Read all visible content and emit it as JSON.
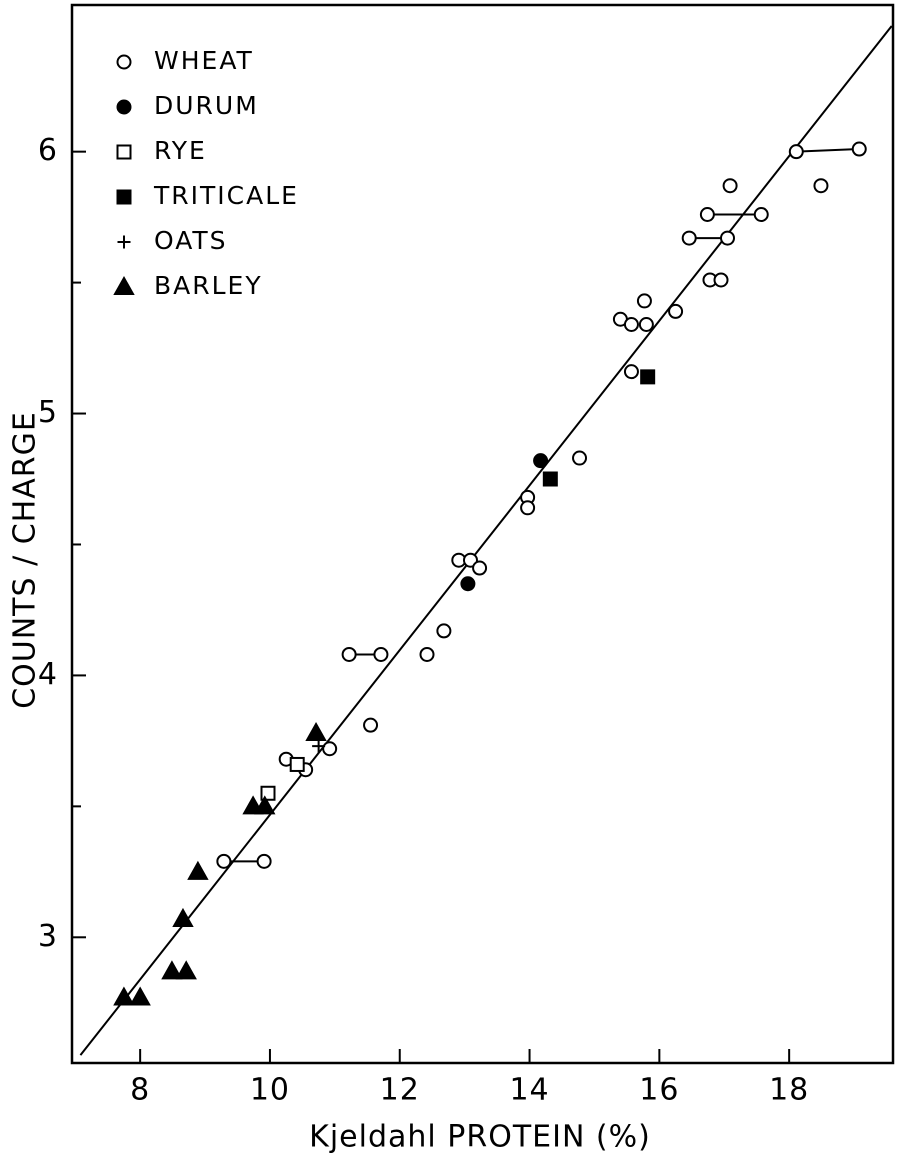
{
  "chart_data": {
    "type": "scatter",
    "xlabel": "Kjeldahl PROTEIN (%)",
    "ylabel": "COUNTS / CHARGE",
    "xlim": [
      6.95,
      19.6
    ],
    "ylim": [
      2.52,
      6.56
    ],
    "xticks": [
      8,
      10,
      12,
      14,
      16,
      18
    ],
    "yticks": [
      3,
      4,
      5,
      6
    ],
    "yminor_ticks": [
      3.5,
      4.5,
      5.5
    ],
    "grid": false,
    "legend": "upper left",
    "fit_line": {
      "x": [
        7.08,
        19.58
      ],
      "y": [
        2.55,
        6.48
      ]
    },
    "series": [
      {
        "name": "WHEAT",
        "marker": "open-circle",
        "color": "#000000",
        "x": [
          18.11,
          19.08,
          18.49,
          17.09,
          16.74,
          17.57,
          16.46,
          17.05,
          16.78,
          16.95,
          15.77,
          16.25,
          15.4,
          15.57,
          15.8,
          15.57,
          14.77,
          13.97,
          13.97,
          12.91,
          13.09,
          13.23,
          12.68,
          12.42,
          11.22,
          11.71,
          11.55,
          10.92,
          10.25,
          10.55,
          9.29,
          9.91
        ],
        "values": [
          6.0,
          6.01,
          5.87,
          5.87,
          5.76,
          5.76,
          5.67,
          5.67,
          5.51,
          5.51,
          5.43,
          5.39,
          5.36,
          5.34,
          5.34,
          5.16,
          4.83,
          4.68,
          4.64,
          4.44,
          4.44,
          4.41,
          4.17,
          4.08,
          4.08,
          4.08,
          3.81,
          3.72,
          3.68,
          3.64,
          3.29,
          3.29
        ],
        "connected_pairs": [
          [
            0,
            1
          ],
          [
            4,
            5
          ],
          [
            6,
            7
          ],
          [
            24,
            25
          ],
          [
            30,
            31
          ]
        ]
      },
      {
        "name": "DURUM",
        "marker": "filled-circle",
        "color": "#000000",
        "x": [
          14.17,
          13.05
        ],
        "values": [
          4.82,
          4.35
        ]
      },
      {
        "name": "RYE",
        "marker": "open-square",
        "color": "#000000",
        "x": [
          9.97,
          10.42
        ],
        "values": [
          3.55,
          3.66
        ]
      },
      {
        "name": "TRITICALE",
        "marker": "filled-square",
        "color": "#000000",
        "x": [
          15.82,
          14.32
        ],
        "values": [
          5.14,
          4.75
        ]
      },
      {
        "name": "OATS",
        "marker": "plus",
        "color": "#000000",
        "x": [
          10.75
        ],
        "values": [
          3.73
        ]
      },
      {
        "name": "BARLEY",
        "marker": "filled-triangle",
        "color": "#000000",
        "x": [
          10.71,
          9.74,
          9.92,
          8.89,
          8.66,
          8.49,
          8.71,
          7.75,
          8.0
        ],
        "values": [
          3.78,
          3.5,
          3.5,
          3.25,
          3.07,
          2.87,
          2.87,
          2.77,
          2.77
        ]
      }
    ]
  }
}
